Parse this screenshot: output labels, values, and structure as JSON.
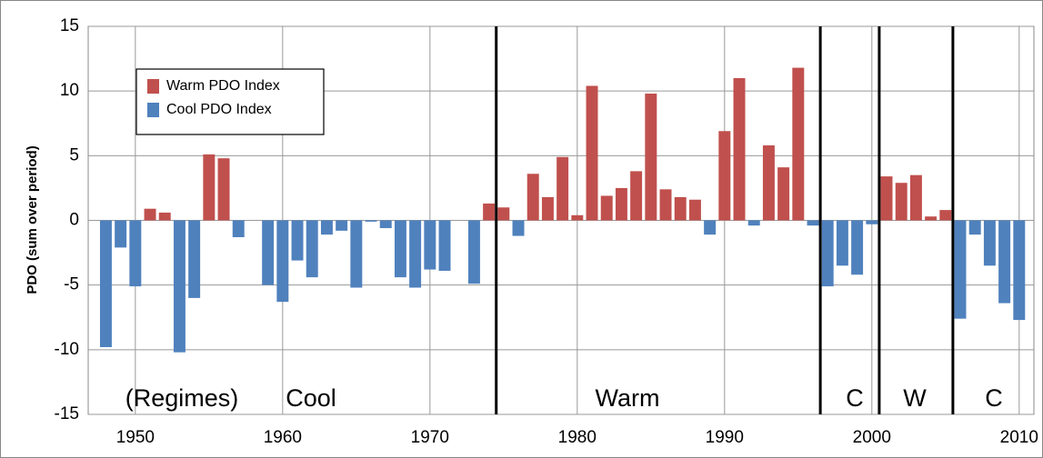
{
  "chart_data": {
    "type": "bar",
    "y_label": "PDO (sum over period)",
    "x": [
      1948,
      1949,
      1950,
      1951,
      1952,
      1953,
      1954,
      1955,
      1956,
      1957,
      1958,
      1959,
      1960,
      1961,
      1962,
      1963,
      1964,
      1965,
      1966,
      1967,
      1968,
      1969,
      1970,
      1971,
      1972,
      1973,
      1974,
      1975,
      1976,
      1977,
      1978,
      1979,
      1980,
      1981,
      1982,
      1983,
      1984,
      1985,
      1986,
      1987,
      1988,
      1989,
      1990,
      1991,
      1992,
      1993,
      1994,
      1995,
      1996,
      1997,
      1998,
      1999,
      2000,
      2001,
      2002,
      2003,
      2004,
      2005,
      2006,
      2007,
      2008,
      2009,
      2010
    ],
    "series": [
      {
        "name": "Warm PDO Index",
        "color": "#c0504d",
        "values": [
          null,
          null,
          null,
          0.9,
          0.6,
          null,
          null,
          5.1,
          4.8,
          null,
          null,
          null,
          null,
          null,
          null,
          null,
          null,
          null,
          null,
          null,
          null,
          null,
          null,
          null,
          null,
          null,
          1.3,
          1.0,
          null,
          3.6,
          1.8,
          4.9,
          0.4,
          10.4,
          1.9,
          2.5,
          3.8,
          9.8,
          2.4,
          1.8,
          1.6,
          null,
          6.9,
          11.0,
          null,
          5.8,
          4.1,
          11.8,
          null,
          null,
          null,
          null,
          null,
          3.4,
          2.9,
          3.5,
          0.3,
          0.8,
          null,
          null,
          null,
          null,
          null
        ]
      },
      {
        "name": "Cool PDO Index",
        "color": "#4f81bd",
        "values": [
          -9.8,
          -2.1,
          -5.1,
          null,
          null,
          -10.2,
          -6.0,
          null,
          null,
          -1.3,
          null,
          -5.0,
          -6.3,
          -3.1,
          -4.4,
          -1.1,
          -0.8,
          -5.2,
          -0.1,
          -0.6,
          -4.4,
          -5.2,
          -3.8,
          -3.9,
          null,
          -4.9,
          null,
          null,
          -1.2,
          null,
          null,
          null,
          null,
          null,
          null,
          null,
          null,
          null,
          null,
          null,
          null,
          -1.1,
          null,
          null,
          -0.4,
          null,
          null,
          null,
          -0.4,
          -5.1,
          -3.5,
          -4.2,
          -0.3,
          null,
          null,
          null,
          null,
          null,
          -7.6,
          -1.1,
          -3.5,
          -6.4,
          -7.7
        ]
      }
    ],
    "xlim": [
      1946.8,
      2011
    ],
    "xticks": [
      1950,
      1960,
      1970,
      1980,
      1990,
      2000,
      2010
    ],
    "ylim": [
      -15,
      15
    ],
    "yticks": [
      -15,
      -10,
      -5,
      0,
      5,
      10,
      15
    ],
    "grid": true,
    "regime_boundaries": [
      1974.5,
      1996.5,
      2000.5,
      2005.5
    ],
    "annotations": [
      "(Regimes)",
      "Cool",
      "Warm",
      "C",
      "W",
      "C"
    ]
  }
}
